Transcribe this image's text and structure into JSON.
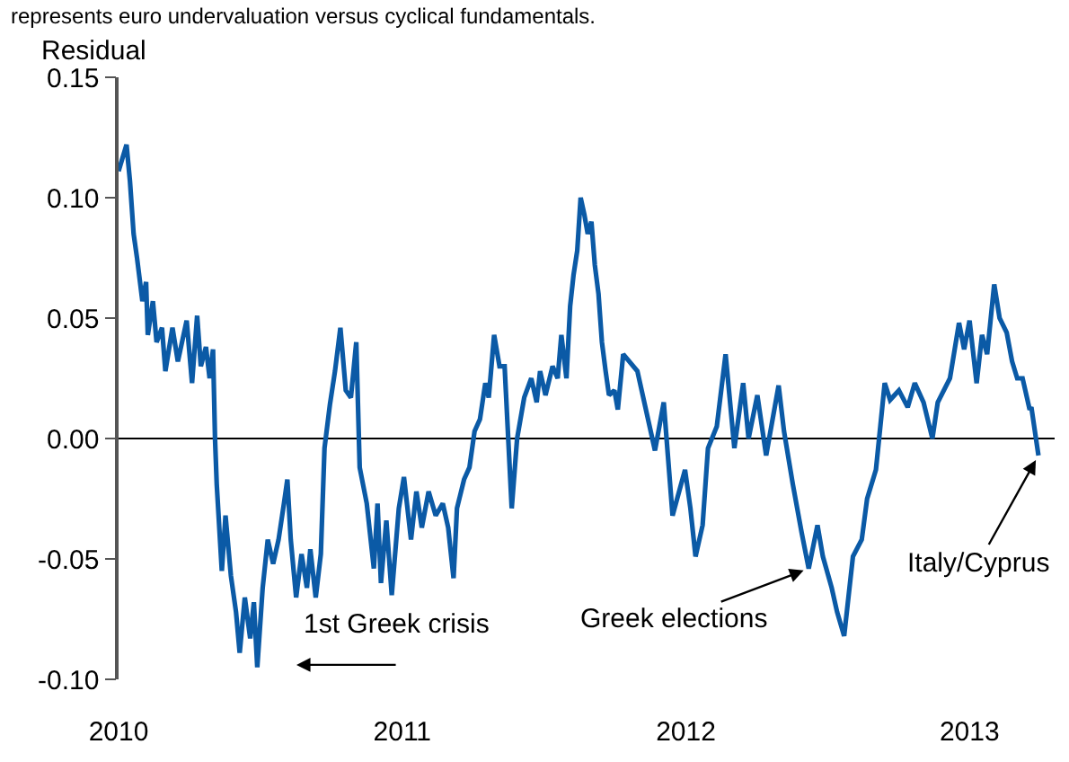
{
  "chart_data": {
    "type": "line",
    "subtitle": "represents euro undervaluation versus cyclical fundamentals.",
    "ylabel": "Residual",
    "x": [
      2010.0,
      2010.028,
      2010.04,
      2010.053,
      2010.065,
      2010.084,
      2010.097,
      2010.103,
      2010.121,
      2010.134,
      2010.153,
      2010.165,
      2010.19,
      2010.209,
      2010.24,
      2010.259,
      2010.277,
      2010.29,
      2010.308,
      2010.321,
      2010.333,
      2010.34,
      2010.346,
      2010.364,
      2010.377,
      2010.396,
      2010.414,
      2010.427,
      2010.445,
      2010.464,
      2010.477,
      2010.489,
      2010.508,
      2010.526,
      2010.545,
      2010.564,
      2010.583,
      2010.595,
      2010.607,
      2010.626,
      2010.645,
      2010.664,
      2010.676,
      2010.695,
      2010.713,
      2010.726,
      2010.745,
      2010.763,
      2010.782,
      2010.801,
      2010.819,
      2010.838,
      2010.85,
      2010.875,
      2010.9,
      2010.913,
      2010.925,
      2010.944,
      2010.963,
      2010.988,
      2011.006,
      2011.031,
      2011.05,
      2011.069,
      2011.093,
      2011.118,
      2011.143,
      2011.162,
      2011.181,
      2011.193,
      2011.218,
      2011.237,
      2011.255,
      2011.274,
      2011.293,
      2011.305,
      2011.324,
      2011.343,
      2011.361,
      2011.386,
      2011.405,
      2011.43,
      2011.455,
      2011.474,
      2011.486,
      2011.505,
      2011.53,
      2011.548,
      2011.561,
      2011.579,
      2011.592,
      2011.604,
      2011.617,
      2011.629,
      2011.642,
      2011.654,
      2011.667,
      2011.679,
      2011.692,
      2011.704,
      2011.717,
      2011.729,
      2011.748,
      2011.76,
      2011.779,
      2011.829,
      2011.891,
      2011.922,
      2011.953,
      2011.997,
      2012.016,
      2012.034,
      2012.059,
      2012.078,
      2012.109,
      2012.14,
      2012.171,
      2012.202,
      2012.221,
      2012.252,
      2012.283,
      2012.327,
      2012.346,
      2012.377,
      2012.408,
      2012.433,
      2012.464,
      2012.483,
      2012.514,
      2012.533,
      2012.558,
      2012.589,
      2012.62,
      2012.639,
      2012.67,
      2012.701,
      2012.72,
      2012.751,
      2012.782,
      2012.807,
      2012.838,
      2012.869,
      2012.888,
      2012.931,
      2012.963,
      2012.981,
      2013.0,
      2013.025,
      2013.044,
      2013.062,
      2013.087,
      2013.106,
      2013.131,
      2013.15,
      2013.168,
      2013.187,
      2013.212,
      2013.218,
      2013.243
    ],
    "series": [
      {
        "color": "#0b5aa6",
        "values": [
          0.111,
          0.122,
          0.107,
          0.085,
          0.075,
          0.057,
          0.065,
          0.043,
          0.057,
          0.04,
          0.046,
          0.028,
          0.046,
          0.032,
          0.049,
          0.023,
          0.051,
          0.03,
          0.038,
          0.025,
          0.037,
          0.0,
          -0.019,
          -0.055,
          -0.032,
          -0.057,
          -0.072,
          -0.089,
          -0.066,
          -0.083,
          -0.068,
          -0.095,
          -0.062,
          -0.042,
          -0.052,
          -0.042,
          -0.027,
          -0.017,
          -0.042,
          -0.066,
          -0.048,
          -0.062,
          -0.046,
          -0.066,
          -0.048,
          -0.004,
          0.014,
          0.028,
          0.046,
          0.02,
          0.017,
          0.04,
          -0.012,
          -0.027,
          -0.054,
          -0.027,
          -0.06,
          -0.034,
          -0.065,
          -0.029,
          -0.016,
          -0.042,
          -0.022,
          -0.037,
          -0.022,
          -0.032,
          -0.027,
          -0.037,
          -0.058,
          -0.029,
          -0.017,
          -0.012,
          0.003,
          0.008,
          0.023,
          0.017,
          0.043,
          0.03,
          0.03,
          -0.029,
          0.0,
          0.017,
          0.025,
          0.015,
          0.028,
          0.018,
          0.03,
          0.025,
          0.043,
          0.025,
          0.055,
          0.068,
          0.078,
          0.1,
          0.093,
          0.085,
          0.09,
          0.072,
          0.06,
          0.04,
          0.028,
          0.018,
          0.02,
          0.012,
          0.035,
          0.028,
          -0.005,
          0.015,
          -0.032,
          -0.013,
          -0.029,
          -0.049,
          -0.036,
          -0.004,
          0.005,
          0.035,
          -0.004,
          0.023,
          0.0,
          0.018,
          -0.007,
          0.022,
          0.003,
          -0.019,
          -0.039,
          -0.054,
          -0.036,
          -0.049,
          -0.062,
          -0.072,
          -0.082,
          -0.049,
          -0.042,
          -0.025,
          -0.013,
          0.023,
          0.016,
          0.02,
          0.013,
          0.023,
          0.015,
          0.0,
          0.015,
          0.025,
          0.048,
          0.037,
          0.049,
          0.023,
          0.043,
          0.035,
          0.064,
          0.05,
          0.044,
          0.032,
          0.025,
          0.025,
          0.012,
          0.013,
          -0.007
        ]
      }
    ],
    "xlim": [
      2010,
      2013.3
    ],
    "xticks": [
      2010,
      2011,
      2012,
      2013
    ],
    "ylim": [
      -0.1,
      0.15
    ],
    "yticks": [
      {
        "value": 0.15,
        "label": "0.15"
      },
      {
        "value": 0.1,
        "label": "0.10"
      },
      {
        "value": 0.05,
        "label": "0.05"
      },
      {
        "value": 0,
        "label": "0.00"
      },
      {
        "value": -0.05,
        "label": "-0.05"
      },
      {
        "value": -0.1,
        "label": "-0.10"
      }
    ],
    "ref_lines": [
      {
        "axis": "y",
        "value": 0,
        "color": "#000000"
      }
    ],
    "annotations": [
      "1st Greek crisis",
      {
        "text": "Greek elections",
        "x": 2012.433,
        "y": -0.054
      },
      {
        "text": "Italy/Cyprus",
        "x": 2013.243,
        "y": -0.007
      }
    ],
    "grid": false,
    "marker": "none",
    "line_style": "solid"
  }
}
